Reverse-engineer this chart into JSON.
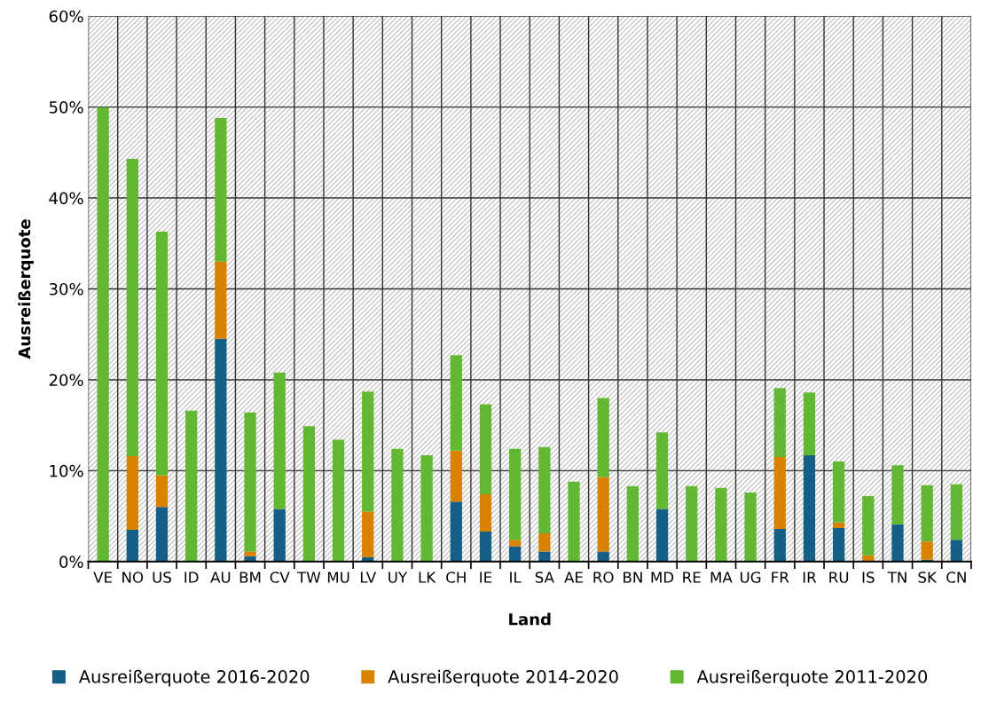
{
  "chart_data": {
    "type": "bar",
    "stacked": true,
    "xlabel": "Land",
    "ylabel": "Ausreißerquote",
    "categories": [
      "VE",
      "NO",
      "US",
      "ID",
      "AU",
      "BM",
      "CV",
      "TW",
      "MU",
      "LV",
      "UY",
      "LK",
      "CH",
      "IE",
      "IL",
      "SA",
      "AE",
      "RO",
      "BN",
      "MD",
      "RE",
      "MA",
      "UG",
      "FR",
      "IR",
      "RU",
      "IS",
      "TN",
      "SK",
      "CN"
    ],
    "series": [
      {
        "name": "Ausreißerquote 2016-2020",
        "color": "#155e85",
        "values": [
          0,
          3.5,
          6.0,
          0,
          24.5,
          0.6,
          5.8,
          0,
          0,
          0.5,
          0,
          0,
          6.6,
          3.3,
          1.7,
          1.1,
          0,
          1.1,
          0,
          5.8,
          0,
          0,
          0,
          3.6,
          11.7,
          3.7,
          0,
          4.1,
          0.2,
          2.4
        ]
      },
      {
        "name": "Ausreißerquote 2014-2020",
        "color": "#d98200",
        "values": [
          0,
          8.1,
          3.5,
          0,
          8.5,
          0.5,
          0,
          0,
          0,
          5.0,
          0,
          0,
          5.6,
          4.1,
          0.7,
          2.0,
          0,
          8.2,
          0,
          0,
          0,
          0,
          0,
          7.9,
          0,
          0.6,
          0.7,
          0,
          2.0,
          0
        ]
      },
      {
        "name": "Ausreißerquote 2011-2020",
        "color": "#62b832",
        "values": [
          50.0,
          32.7,
          26.8,
          16.6,
          15.8,
          15.3,
          15.0,
          14.9,
          13.4,
          13.2,
          12.4,
          11.7,
          10.5,
          9.9,
          10.0,
          9.5,
          8.8,
          8.7,
          8.3,
          8.4,
          8.3,
          8.1,
          7.6,
          7.6,
          6.9,
          6.7,
          6.5,
          6.5,
          6.2,
          6.1
        ]
      }
    ],
    "ylim": [
      0,
      60
    ],
    "yticks": [
      {
        "value": 0,
        "label": "0%"
      },
      {
        "value": 10,
        "label": "10%"
      },
      {
        "value": 20,
        "label": "20%"
      },
      {
        "value": 30,
        "label": "30%"
      },
      {
        "value": 40,
        "label": "40%"
      },
      {
        "value": 50,
        "label": "50%"
      },
      {
        "value": 60,
        "label": "60%"
      }
    ],
    "grid": true,
    "legend": "bottom"
  }
}
